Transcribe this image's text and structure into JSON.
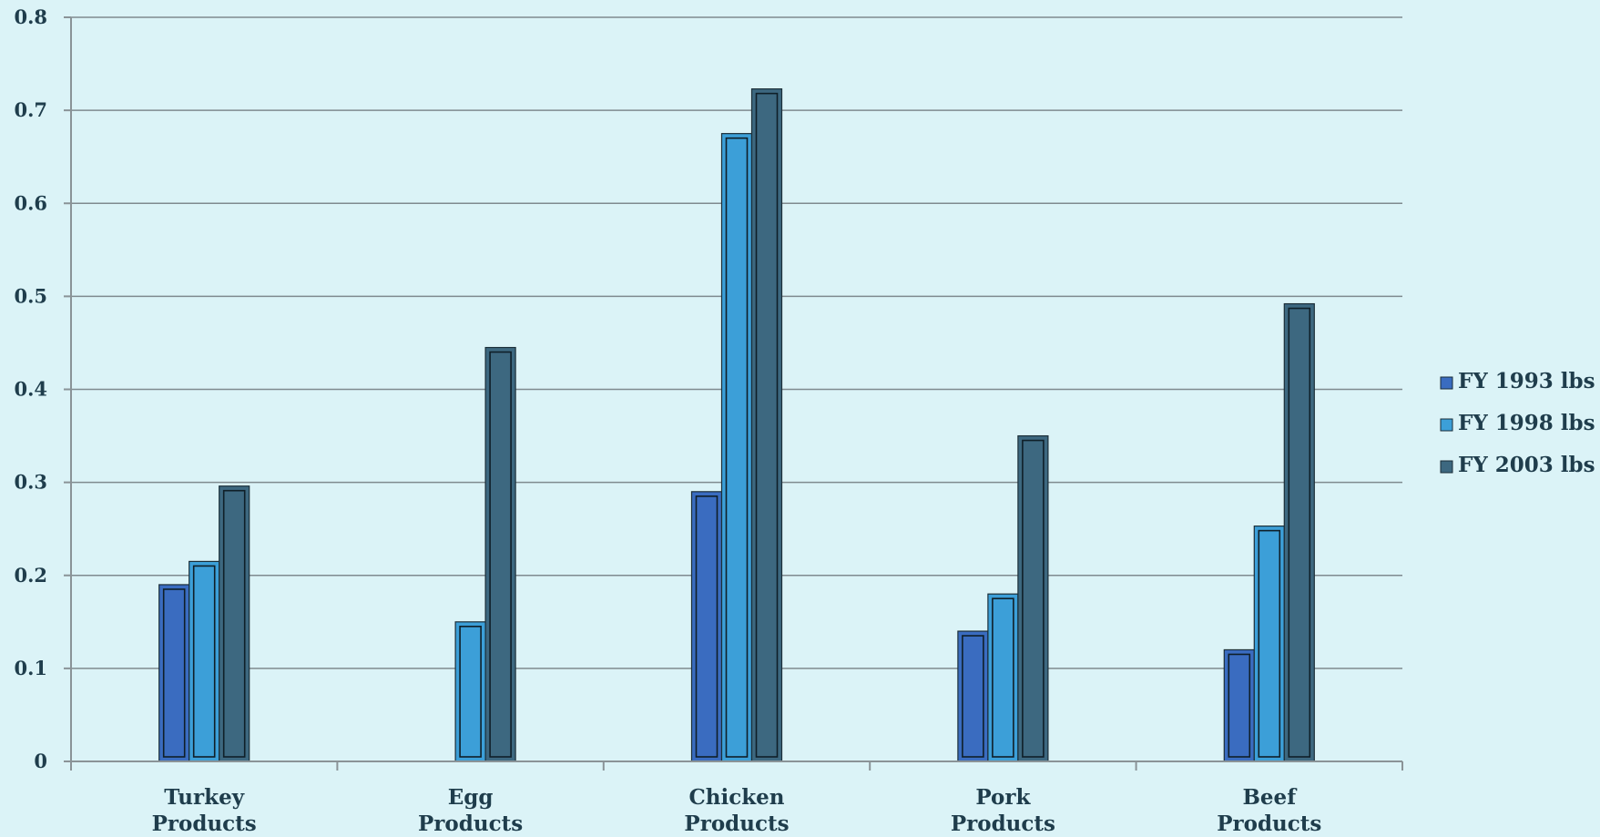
{
  "chart_data": {
    "type": "bar",
    "title": "",
    "xlabel": "",
    "ylabel": "",
    "ylim": [
      0,
      0.8
    ],
    "yticks": [
      "0",
      "0.1",
      "0.2",
      "0.3",
      "0.4",
      "0.5",
      "0.6",
      "0.7",
      "0.8"
    ],
    "grid": true,
    "legend_position": "right",
    "categories": [
      [
        "Turkey",
        "Products"
      ],
      [
        "Egg",
        "Products"
      ],
      [
        "Chicken",
        "Products"
      ],
      [
        "Pork",
        "Products"
      ],
      [
        "Beef",
        "Products"
      ]
    ],
    "series": [
      {
        "name": "FY 1993 lbs",
        "color": "#3a6cc0",
        "values": [
          0.19,
          0,
          0.29,
          0.14,
          0.12
        ]
      },
      {
        "name": "FY 1998 lbs",
        "color": "#3c9fd8",
        "values": [
          0.215,
          0.15,
          0.675,
          0.18,
          0.253
        ]
      },
      {
        "name": "FY 2003 lbs",
        "color": "#3d6880",
        "values": [
          0.296,
          0.445,
          0.723,
          0.35,
          0.492
        ]
      }
    ]
  }
}
